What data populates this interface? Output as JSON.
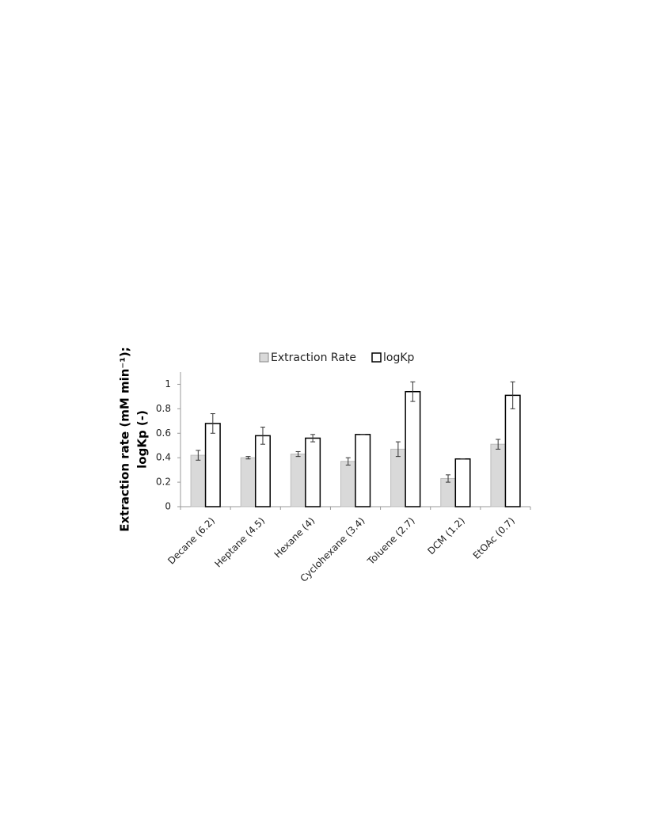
{
  "chart_data": {
    "type": "bar",
    "y_label": [
      "Extraction rate (mM min⁻¹);",
      "logKp (-)"
    ],
    "categories": [
      "Decane (6.2)",
      "Heptane (4.5)",
      "Hexane (4)",
      "Cyclohexane (3.4)",
      "Toluene (2.7)",
      "DCM (1.2)",
      "EtOAc (0.7)"
    ],
    "series": [
      {
        "name": "Extraction Rate",
        "color": "#d9d9d9",
        "values": [
          0.42,
          0.4,
          0.43,
          0.37,
          0.47,
          0.23,
          0.51
        ],
        "errors": [
          0.04,
          0.01,
          0.02,
          0.03,
          0.06,
          0.03,
          0.04
        ]
      },
      {
        "name": "logKp",
        "color": "#ffffff",
        "values": [
          0.68,
          0.58,
          0.56,
          0.59,
          0.94,
          0.39,
          0.91
        ],
        "errors": [
          0.08,
          0.07,
          0.03,
          0,
          0.08,
          0,
          0.11
        ]
      }
    ],
    "ylim": [
      0,
      1.1
    ],
    "yticks": [
      0,
      0.2,
      0.4,
      0.6,
      0.8,
      1
    ],
    "legend": "top"
  }
}
